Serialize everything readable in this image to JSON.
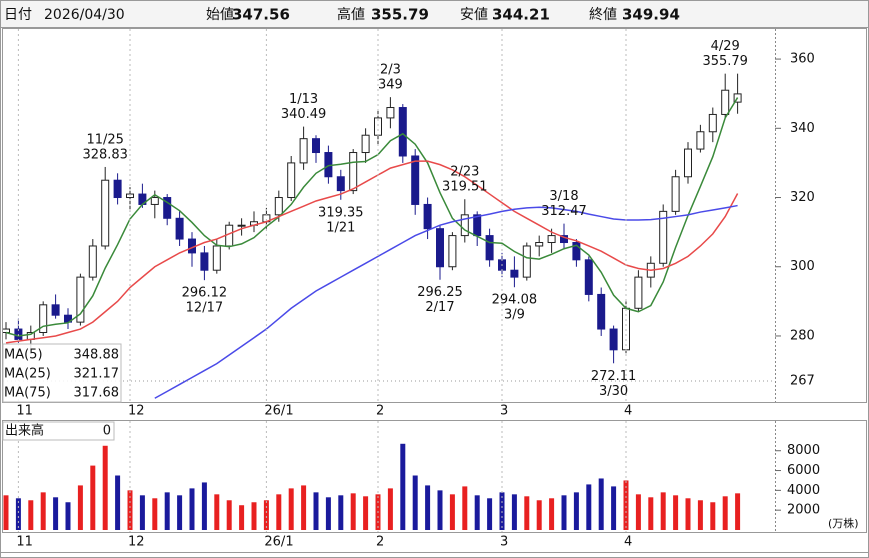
{
  "chart_data": {
    "type": "candlestick",
    "header": {
      "date_label": "日付",
      "date": "2026/04/30",
      "open_label": "始値",
      "high_label": "高値",
      "low_label": "安値",
      "close_label": "終値",
      "high_color": "#e01010",
      "low_color": "#0a7a0a"
    },
    "candles": [
      [
        281,
        284,
        279,
        282
      ],
      [
        282,
        285,
        278,
        279
      ],
      [
        279,
        283,
        276,
        281
      ],
      [
        281,
        290,
        280,
        289
      ],
      [
        289,
        292,
        285,
        286
      ],
      [
        286,
        288,
        282,
        284
      ],
      [
        284,
        298,
        283,
        297
      ],
      [
        297,
        308,
        296,
        306
      ],
      [
        306,
        328.83,
        305,
        325
      ],
      [
        325,
        327,
        318,
        320
      ],
      [
        320,
        323,
        316,
        321
      ],
      [
        321,
        324,
        317,
        318
      ],
      [
        318,
        322,
        314,
        320
      ],
      [
        320,
        321,
        312,
        314
      ],
      [
        314,
        316,
        306,
        308
      ],
      [
        308,
        310,
        300,
        304
      ],
      [
        304,
        306,
        296.12,
        299
      ],
      [
        299,
        308,
        298,
        306
      ],
      [
        306,
        313,
        305,
        312
      ],
      [
        312,
        314,
        309,
        312
      ],
      [
        312,
        316,
        310,
        313
      ],
      [
        313,
        317,
        311,
        315
      ],
      [
        315,
        322,
        313,
        320
      ],
      [
        320,
        332,
        319,
        330
      ],
      [
        330,
        340.49,
        328,
        337
      ],
      [
        337,
        338,
        330,
        333
      ],
      [
        333,
        335,
        324,
        326
      ],
      [
        326,
        328,
        319.35,
        322
      ],
      [
        322,
        334,
        321,
        333
      ],
      [
        333,
        340,
        330,
        338
      ],
      [
        338,
        345,
        335,
        343
      ],
      [
        343,
        349.0,
        340,
        346
      ],
      [
        346,
        347,
        330,
        332
      ],
      [
        332,
        334,
        315,
        318
      ],
      [
        318,
        320,
        308,
        311
      ],
      [
        311,
        312,
        296.25,
        300
      ],
      [
        300,
        310,
        299,
        309
      ],
      [
        309,
        319.51,
        307,
        315
      ],
      [
        315,
        316,
        306,
        309
      ],
      [
        309,
        311,
        300,
        302
      ],
      [
        302,
        304,
        297,
        299
      ],
      [
        299,
        303,
        294.08,
        297
      ],
      [
        297,
        307,
        296,
        306
      ],
      [
        306,
        309,
        303,
        307
      ],
      [
        307,
        311,
        304,
        309
      ],
      [
        309,
        312.47,
        305,
        307
      ],
      [
        307,
        308,
        300,
        302
      ],
      [
        302,
        303,
        290,
        292
      ],
      [
        292,
        294,
        280,
        282
      ],
      [
        282,
        283,
        272.11,
        276
      ],
      [
        276,
        290,
        275,
        288
      ],
      [
        288,
        299,
        287,
        297
      ],
      [
        297,
        303,
        294,
        301
      ],
      [
        301,
        318,
        300,
        316
      ],
      [
        316,
        328,
        315,
        326
      ],
      [
        326,
        336,
        324,
        334
      ],
      [
        334,
        341,
        333,
        339
      ],
      [
        339,
        346,
        336,
        344
      ],
      [
        344,
        355.79,
        343,
        351
      ],
      [
        347.56,
        355.79,
        344.21,
        349.94
      ]
    ],
    "up_color": "#ffffff",
    "up_edge": "#222222",
    "down_color": "#1a1a8c",
    "series": [
      {
        "name": "MA(5)",
        "color": "#3a8a3a",
        "values": [
          281,
          280,
          280.5,
          282.8,
          283.4,
          283.8,
          286.4,
          291.6,
          299.6,
          306.4,
          313.8,
          318,
          320.8,
          318.6,
          316.2,
          312.8,
          309,
          306.2,
          305.8,
          306.6,
          308.4,
          311.6,
          314.4,
          318,
          323,
          327,
          329.2,
          329.6,
          330.2,
          330.4,
          332.4,
          336.4,
          338.4,
          335.4,
          330,
          321.4,
          314,
          310.6,
          308.8,
          307,
          306.8,
          304.4,
          302.6,
          302.2,
          303.6,
          305.2,
          306.2,
          303.4,
          298.4,
          291.8,
          288,
          287,
          288.8,
          295.6,
          305.6,
          314.8,
          323.2,
          331.8,
          343,
          348.88
        ]
      },
      {
        "name": "MA(25)",
        "color": "#e84a4a",
        "values": [
          278,
          278.5,
          279,
          279.5,
          280,
          281,
          282,
          284,
          287,
          290,
          294,
          297,
          300,
          302,
          304,
          305.5,
          307,
          308,
          309.5,
          311,
          312,
          313,
          314.5,
          316,
          317.5,
          319,
          320,
          321,
          322.5,
          324.5,
          326.5,
          328.5,
          329.5,
          330.5,
          330.5,
          329.5,
          328,
          326,
          323.5,
          321,
          318.5,
          316,
          314,
          312,
          310,
          308.5,
          307.5,
          306,
          304.5,
          302.5,
          300.5,
          299.5,
          299,
          299.5,
          301,
          303,
          306,
          309.5,
          314.5,
          321.17
        ]
      },
      {
        "name": "MA(75)",
        "color": "#4a4ae8",
        "values": [
          null,
          null,
          null,
          null,
          null,
          null,
          null,
          null,
          null,
          null,
          null,
          null,
          262,
          264,
          266,
          268,
          270,
          272,
          274.5,
          277,
          279.5,
          282,
          285,
          288,
          290.5,
          293,
          295,
          297,
          299,
          301,
          303,
          305,
          307,
          309,
          310.5,
          312,
          313,
          313.8,
          314.5,
          315.2,
          316,
          316.6,
          317,
          317.2,
          317,
          316.5,
          316,
          315.2,
          314.5,
          313.8,
          313.5,
          313.5,
          313.6,
          314,
          314.5,
          315,
          315.8,
          316.4,
          317,
          317.68
        ]
      }
    ],
    "ylim": [
      261.5,
      368.4
    ],
    "yticks": [
      280,
      300,
      320,
      340,
      360
    ],
    "ref_line": {
      "value": 267,
      "color": "#e8743b"
    },
    "xticks": [
      {
        "value": 1,
        "label": "11"
      },
      {
        "value": 10,
        "label": "12"
      },
      {
        "value": 21,
        "label": "26/1"
      },
      {
        "value": 30,
        "label": "2"
      },
      {
        "value": 40,
        "label": "3"
      },
      {
        "value": 50,
        "label": "4"
      }
    ],
    "annotations": [
      {
        "x": 8,
        "date": "11/25",
        "value": 328.83,
        "position": "above"
      },
      {
        "x": 16,
        "date": "12/17",
        "value": 296.12,
        "position": "below"
      },
      {
        "x": 24,
        "date": "1/13",
        "value": 340.49,
        "position": "above"
      },
      {
        "x": 27,
        "date": "1/21",
        "value": 319.35,
        "position": "below"
      },
      {
        "x": 31,
        "date": "2/3",
        "value": 349.0,
        "position": "above"
      },
      {
        "x": 35,
        "date": "2/17",
        "value": 296.25,
        "position": "below"
      },
      {
        "x": 37,
        "date": "2/23",
        "value": 319.51,
        "position": "above"
      },
      {
        "x": 41,
        "date": "3/9",
        "value": 294.08,
        "position": "below"
      },
      {
        "x": 45,
        "date": "3/18",
        "value": 312.47,
        "position": "above"
      },
      {
        "x": 49,
        "date": "3/30",
        "value": 272.11,
        "position": "below"
      },
      {
        "x": 58,
        "date": "4/29",
        "value": 355.79,
        "position": "above"
      }
    ],
    "volume": {
      "label": "出来高",
      "current": 0,
      "unit": "(万株)",
      "up_color": "#e82020",
      "down_color": "#1a1a9c",
      "values": [
        3500,
        3200,
        3000,
        3800,
        3300,
        2800,
        4500,
        6500,
        8500,
        5500,
        4000,
        3500,
        3200,
        3800,
        3500,
        4200,
        4800,
        3600,
        3000,
        2500,
        2800,
        3000,
        3600,
        4200,
        4500,
        3800,
        3300,
        3500,
        3700,
        3400,
        3600,
        4200,
        8700,
        5500,
        4500,
        4000,
        3600,
        4400,
        3500,
        3200,
        3800,
        3600,
        3400,
        3000,
        3200,
        3500,
        3800,
        4600,
        5200,
        4400,
        5000,
        3600,
        3300,
        3800,
        3500,
        3200,
        3000,
        2800,
        3400,
        3700
      ],
      "ylim": [
        0,
        11000
      ],
      "yticks": [
        2000,
        4000,
        6000,
        8000
      ]
    }
  }
}
